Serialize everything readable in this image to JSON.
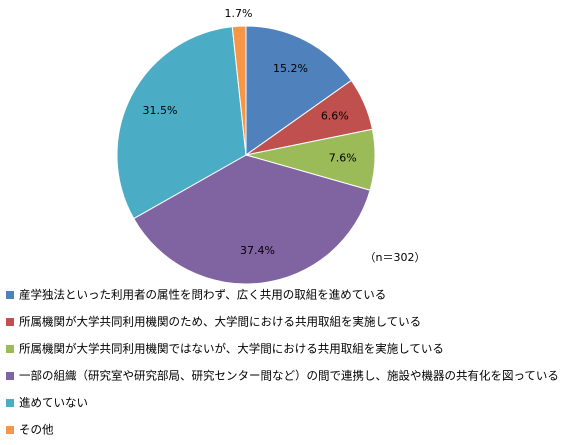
{
  "chart_data": {
    "type": "pie",
    "categories": [
      "産学独法といった利用者の属性を問わず、広く共用の取組を進めている",
      "所属機関が大学共同利用機関のため、大学間における共用取組を実施している",
      "所属機関が大学共同利用機関ではないが、大学間における共用取組を実施している",
      "一部の組織（研究室や研究部局、研究センター間など）の間で連携し、施設や機器の共有化を図っている",
      "進めていない",
      "その他"
    ],
    "values": [
      15.2,
      6.6,
      7.6,
      37.4,
      31.5,
      1.7
    ],
    "value_labels": [
      "15.2%",
      "6.6%",
      "7.6%",
      "37.4%",
      "31.5%",
      "1.7%"
    ],
    "colors": [
      "#4f81bd",
      "#c0504d",
      "#9bbb59",
      "#8064a2",
      "#4bacc6",
      "#f79646"
    ],
    "annotation": "（n＝302）",
    "legend": "bottom"
  }
}
